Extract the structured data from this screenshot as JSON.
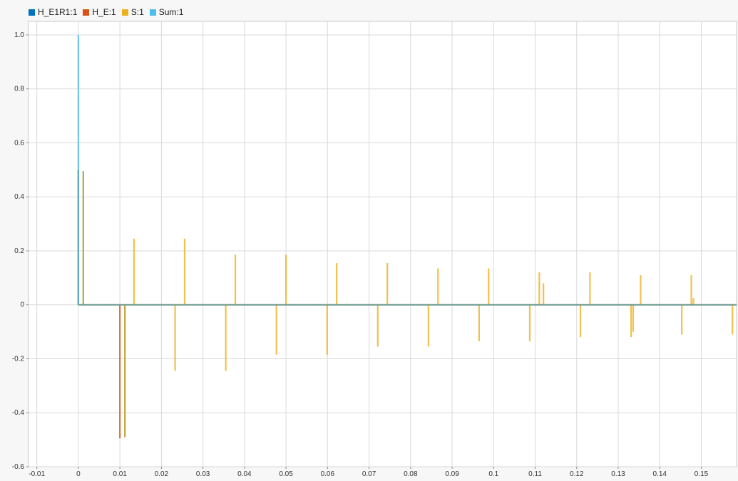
{
  "chart_data": {
    "type": "bar",
    "title": "",
    "xlabel": "",
    "ylabel": "",
    "xlim": [
      -0.012,
      0.1585
    ],
    "ylim": [
      -0.6,
      1.05
    ],
    "x_ticks": [
      -0.01,
      0,
      0.01,
      0.02,
      0.03,
      0.04,
      0.05,
      0.06,
      0.07,
      0.08,
      0.09,
      0.1,
      0.11,
      0.12,
      0.13,
      0.14,
      0.15
    ],
    "x_tick_labels": [
      "-0.01",
      "0",
      "0.01",
      "0.02",
      "0.03",
      "0.04",
      "0.05",
      "0.06",
      "0.07",
      "0.08",
      "0.09",
      "0.1",
      "0.11",
      "0.12",
      "0.13",
      "0.14",
      "0.15"
    ],
    "y_ticks": [
      -0.6,
      -0.4,
      -0.2,
      0,
      0.2,
      0.4,
      0.6,
      0.8,
      1.0
    ],
    "y_tick_labels": [
      "-0.6",
      "-0.4",
      "-0.2",
      "0",
      "0.2",
      "0.4",
      "0.6",
      "0.8",
      "1.0"
    ],
    "grid": true,
    "legend_position": "top-left",
    "series": [
      {
        "name": "H_E1R1:1",
        "color": "#0072bd",
        "points": [
          [
            0.0,
            0.5
          ],
          [
            0.0012,
            0.495
          ],
          [
            0.0112,
            -0.49
          ]
        ]
      },
      {
        "name": "H_E:1",
        "color": "#d95319",
        "points": [
          [
            0.0,
            0.5
          ],
          [
            0.01,
            -0.495
          ]
        ]
      },
      {
        "name": "S:1",
        "color": "#edb120",
        "points": [
          [
            0.0012,
            0.495
          ],
          [
            0.0112,
            -0.49
          ],
          [
            0.0134,
            0.245
          ],
          [
            0.0233,
            -0.245
          ],
          [
            0.0256,
            0.245
          ],
          [
            0.0355,
            -0.245
          ],
          [
            0.0378,
            0.185
          ],
          [
            0.0477,
            -0.185
          ],
          [
            0.05,
            0.185
          ],
          [
            0.0599,
            -0.185
          ],
          [
            0.0622,
            0.155
          ],
          [
            0.0721,
            -0.155
          ],
          [
            0.0744,
            0.155
          ],
          [
            0.0843,
            -0.155
          ],
          [
            0.0866,
            0.135
          ],
          [
            0.0965,
            -0.135
          ],
          [
            0.0988,
            0.135
          ],
          [
            0.1087,
            -0.135
          ],
          [
            0.111,
            0.12
          ],
          [
            0.112,
            0.08
          ],
          [
            0.1209,
            -0.12
          ],
          [
            0.1232,
            0.12
          ],
          [
            0.1331,
            -0.12
          ],
          [
            0.1336,
            -0.1
          ],
          [
            0.1354,
            0.11
          ],
          [
            0.1453,
            -0.11
          ],
          [
            0.1476,
            0.11
          ],
          [
            0.1481,
            0.025
          ],
          [
            0.1575,
            -0.11
          ]
        ]
      },
      {
        "name": "Sum:1",
        "color": "#4dbeee",
        "points": [
          [
            0.0,
            1.0
          ]
        ]
      }
    ]
  }
}
